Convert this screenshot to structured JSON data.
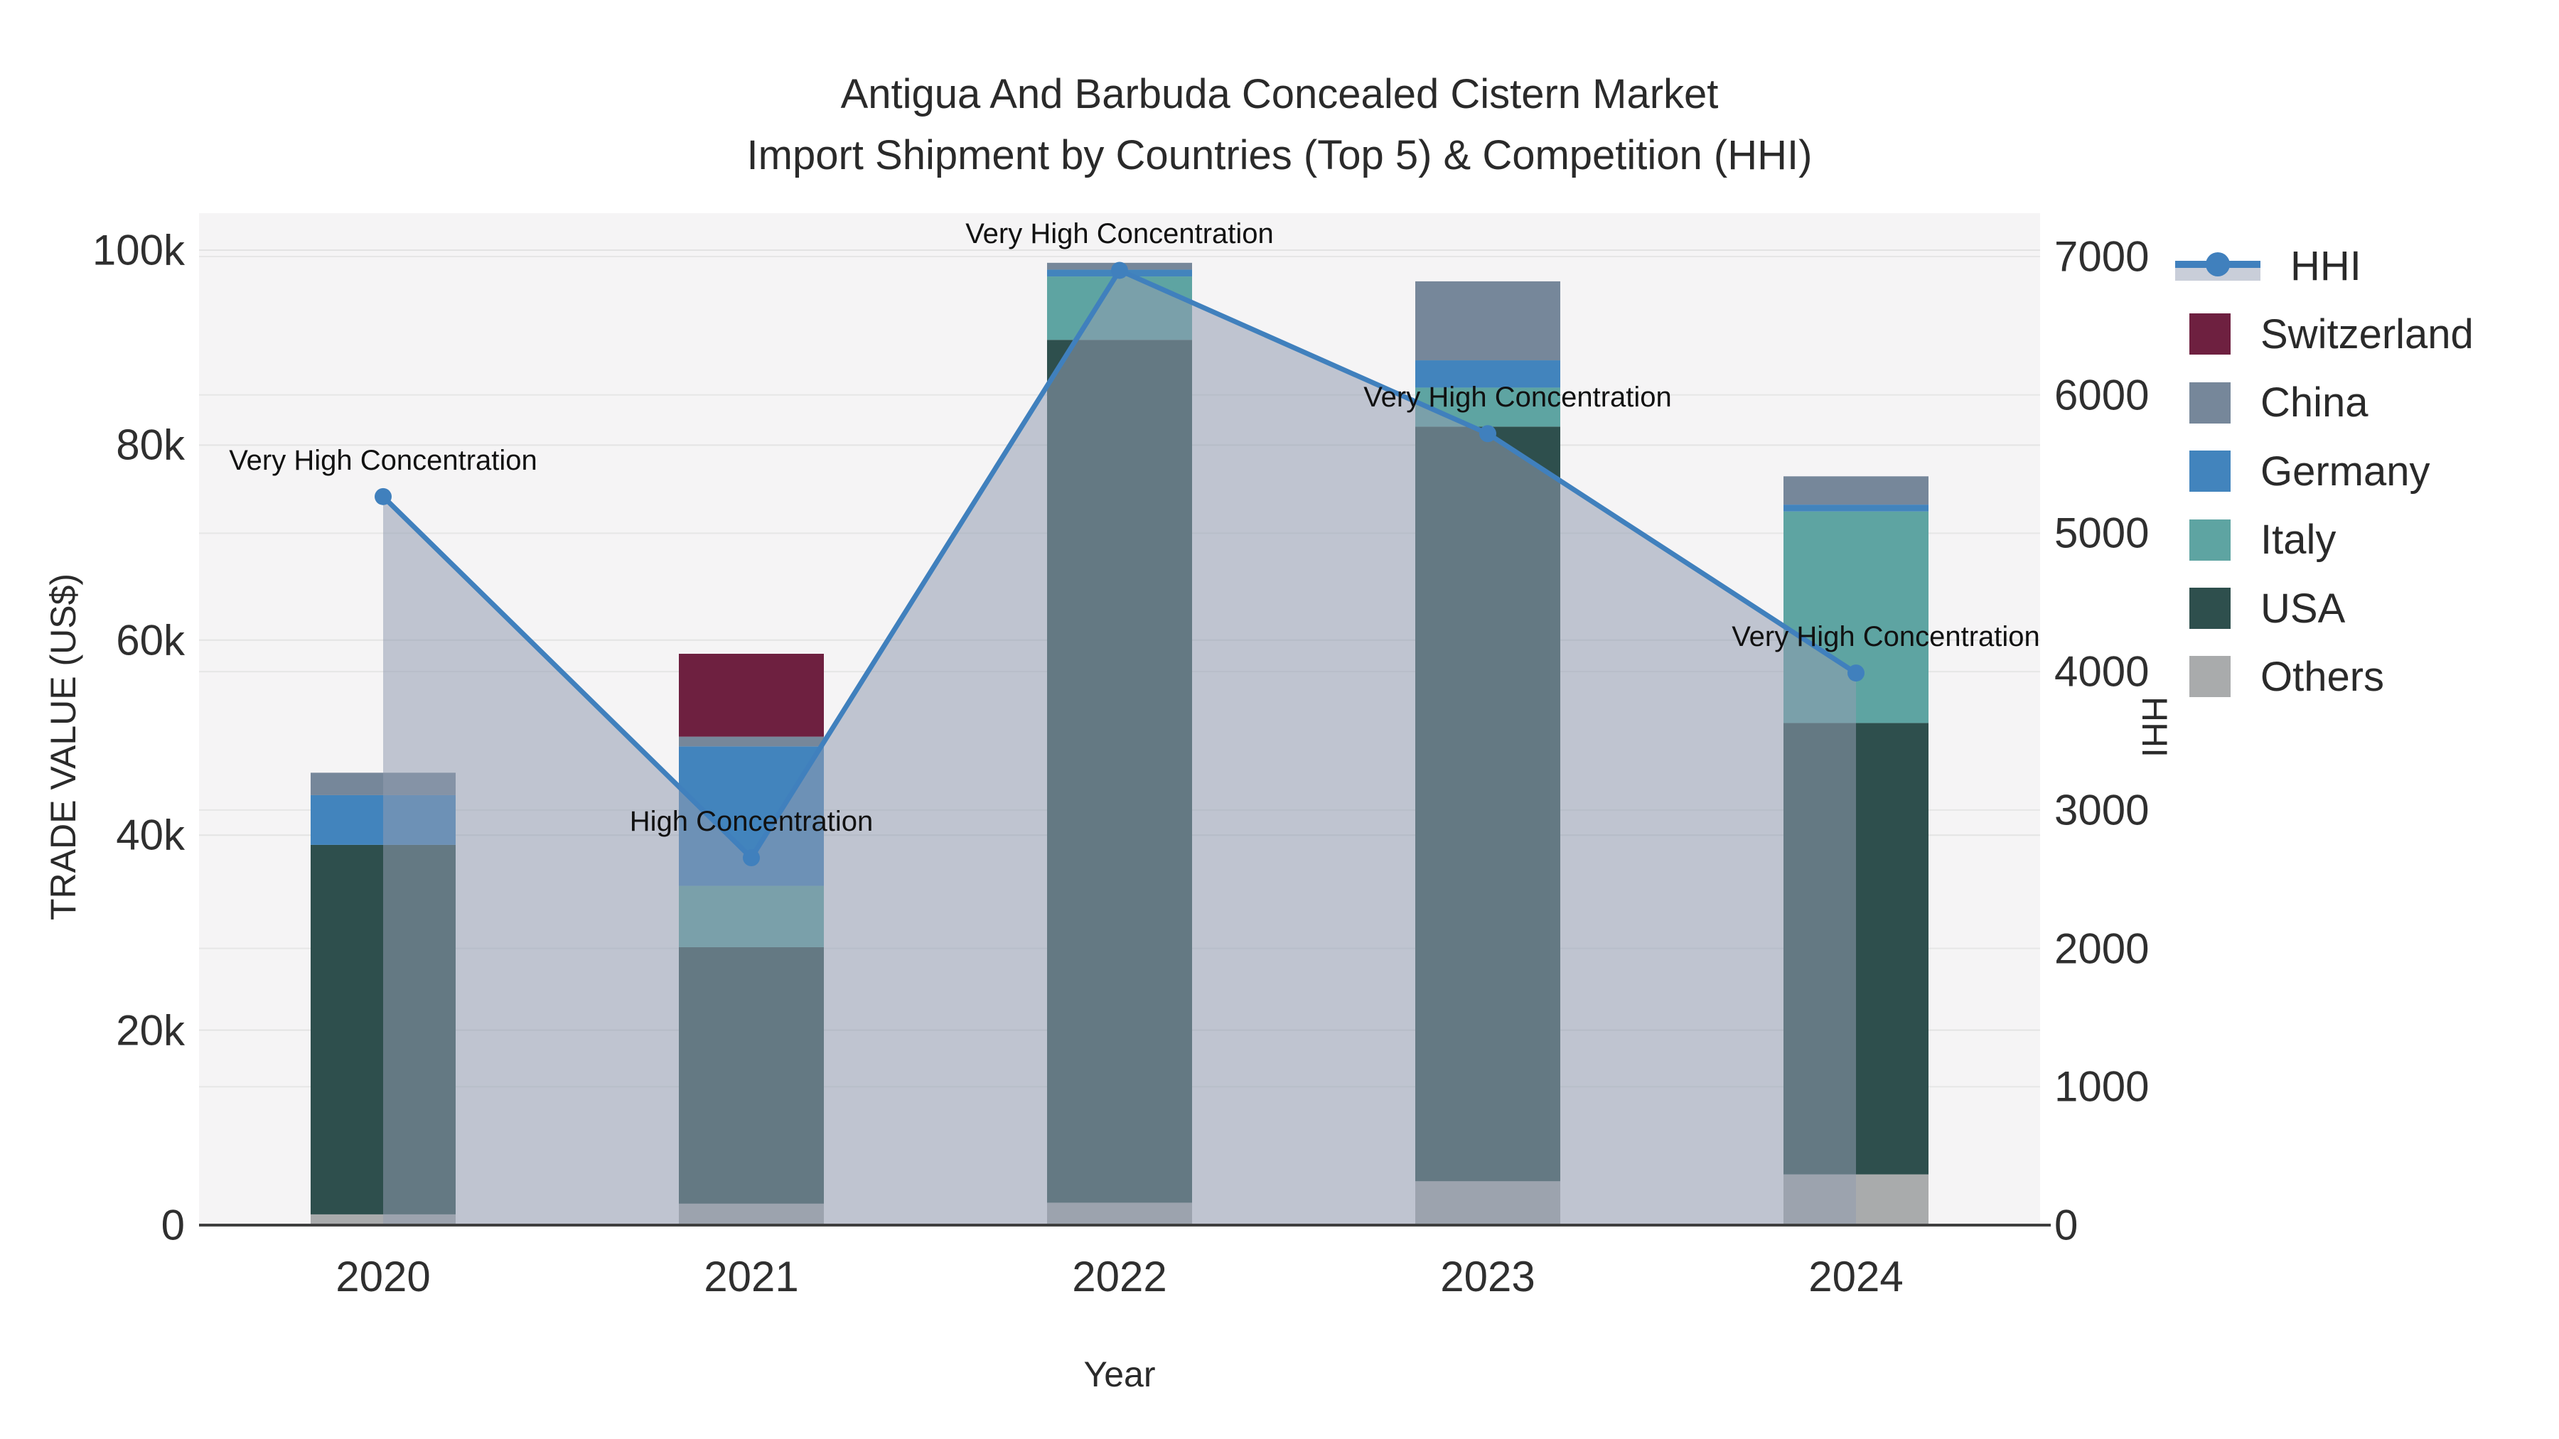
{
  "title": {
    "line1": "Antigua And Barbuda Concealed Cistern Market",
    "line2": "Import Shipment by Countries (Top 5) & Competition (HHI)"
  },
  "axes": {
    "y_left": {
      "title": "TRADE VALUE (US$)",
      "ticks": [
        "0",
        "20k",
        "40k",
        "60k",
        "80k",
        "100k"
      ],
      "tick_values": [
        0,
        20000,
        40000,
        60000,
        80000,
        100000
      ],
      "max": 100000
    },
    "y_right": {
      "title": "HHI",
      "ticks": [
        "0",
        "1000",
        "2000",
        "3000",
        "4000",
        "5000",
        "6000",
        "7000"
      ],
      "tick_values": [
        0,
        1000,
        2000,
        3000,
        4000,
        5000,
        6000,
        7000
      ],
      "max": 7000
    },
    "x": {
      "title": "Year",
      "categories": [
        "2020",
        "2021",
        "2022",
        "2023",
        "2024"
      ]
    }
  },
  "legend": [
    {
      "name": "HHI",
      "type": "line",
      "color": "#4080bd",
      "band_color": "#c9ced9"
    },
    {
      "name": "Switzerland",
      "type": "square",
      "color": "#6e2040"
    },
    {
      "name": "China",
      "type": "square",
      "color": "#76879a"
    },
    {
      "name": "Germany",
      "type": "square",
      "color": "#4284bd"
    },
    {
      "name": "Italy",
      "type": "square",
      "color": "#5ea4a2"
    },
    {
      "name": "USA",
      "type": "square",
      "color": "#2e4f4d"
    },
    {
      "name": "Others",
      "type": "square",
      "color": "#a9abac"
    }
  ],
  "chart_data": {
    "type": "bar+line",
    "title": "Antigua And Barbuda Concealed Cistern Market Import Shipment by Countries (Top 5) & Competition (HHI)",
    "xlabel": "Year",
    "ylabel_left": "TRADE VALUE (US$)",
    "ylabel_right": "HHI",
    "ylim_left": [
      0,
      100000
    ],
    "ylim_right": [
      0,
      7000
    ],
    "grid": true,
    "legend_position": "right",
    "categories": [
      "2020",
      "2021",
      "2022",
      "2023",
      "2024"
    ],
    "stack_order_bottom_to_top": [
      "Others",
      "USA",
      "Italy",
      "Germany",
      "China",
      "Switzerland"
    ],
    "series": [
      {
        "name": "Switzerland",
        "axis": "left",
        "color": "#6e2040",
        "values": [
          0,
          8500,
          0,
          0,
          0
        ]
      },
      {
        "name": "China",
        "axis": "left",
        "color": "#76879a",
        "values": [
          2300,
          1000,
          700,
          8100,
          2900
        ]
      },
      {
        "name": "Germany",
        "axis": "left",
        "color": "#4284bd",
        "values": [
          5100,
          14300,
          700,
          2800,
          700
        ]
      },
      {
        "name": "Italy",
        "axis": "left",
        "color": "#5ea4a2",
        "values": [
          0,
          6300,
          6500,
          4000,
          21700
        ]
      },
      {
        "name": "USA",
        "axis": "left",
        "color": "#2e4f4d",
        "values": [
          37900,
          26300,
          88500,
          77400,
          46300
        ]
      },
      {
        "name": "Others",
        "axis": "left",
        "color": "#a9abac",
        "values": [
          1100,
          2200,
          2300,
          4500,
          5200
        ]
      }
    ],
    "bar_totals": [
      46400,
      58600,
      98700,
      96800,
      76800
    ],
    "hhi_line": {
      "name": "HHI",
      "axis": "right",
      "color": "#4080bd",
      "fill_color": "rgba(145,156,176,0.55)",
      "values": [
        5265,
        2655,
        6900,
        5720,
        3990
      ]
    },
    "annotations": [
      {
        "category": "2020",
        "text": "Very High Concentration"
      },
      {
        "category": "2021",
        "text": "High Concentration"
      },
      {
        "category": "2022",
        "text": "Very High Concentration"
      },
      {
        "category": "2023",
        "text": "Very High Concentration"
      },
      {
        "category": "2024",
        "text": "Very High Concentration"
      }
    ]
  }
}
